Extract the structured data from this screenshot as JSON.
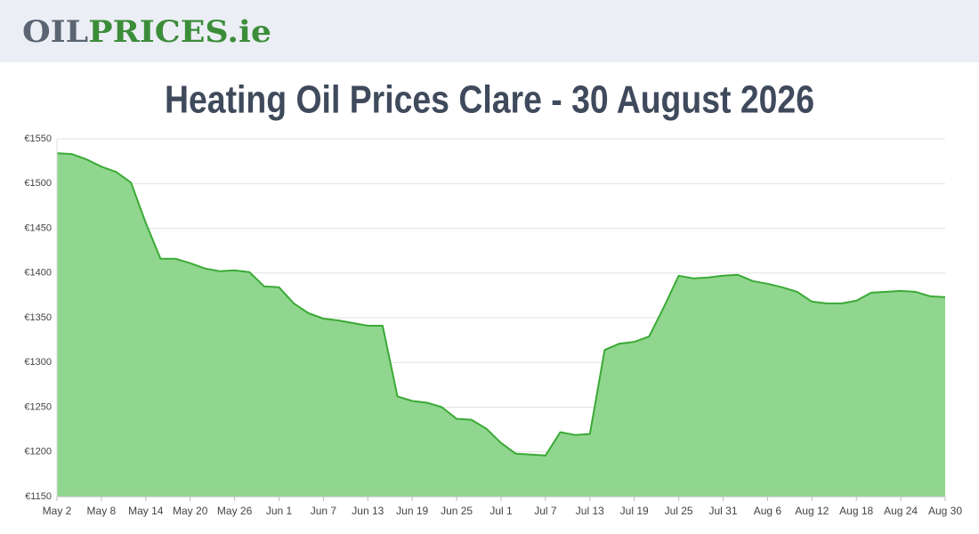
{
  "header": {
    "logo": [
      "OIL",
      "PRICES",
      ".ie"
    ]
  },
  "chart_data": {
    "type": "area",
    "title": "Heating Oil Prices Clare - 30 August 2026",
    "categories": [
      "May 2",
      null,
      null,
      "May 8",
      null,
      null,
      "May 14",
      null,
      null,
      "May 20",
      null,
      null,
      "May 26",
      null,
      null,
      "Jun 1",
      null,
      null,
      "Jun 7",
      null,
      null,
      "Jun 13",
      null,
      null,
      "Jun 19",
      null,
      null,
      "Jun 25",
      null,
      null,
      "Jul 1",
      null,
      null,
      "Jul 7",
      null,
      null,
      "Jul 13",
      null,
      null,
      "Jul 19",
      null,
      null,
      "Jul 25",
      null,
      null,
      "Jul 31",
      null,
      null,
      "Aug 6",
      null,
      null,
      "Aug 12",
      null,
      null,
      "Aug 18",
      null,
      null,
      "Aug 24",
      null,
      null,
      "Aug 30"
    ],
    "values": [
      1534,
      1533,
      1527,
      1519,
      1513,
      1501,
      1456,
      1416,
      1416,
      1411,
      1405,
      1402,
      1403,
      1401,
      1385,
      1384,
      1366,
      1355,
      1349,
      1347,
      1344,
      1341,
      1341,
      1262,
      1257,
      1255,
      1250,
      1237,
      1236,
      1226,
      1210,
      1198,
      1197,
      1196,
      1222,
      1219,
      1220,
      1314,
      1321,
      1323,
      1329,
      1362,
      1397,
      1394,
      1395,
      1397,
      1398,
      1391,
      1388,
      1384,
      1379,
      1368,
      1366,
      1366,
      1369,
      1378,
      1379,
      1380,
      1379,
      1374,
      1373
    ],
    "color": "#3aaa35",
    "fill": "#90d68f",
    "ylim": [
      1150,
      1550
    ],
    "yticks": [
      {
        "value": 1150,
        "label": "€1150"
      },
      {
        "value": 1200,
        "label": "€1200"
      },
      {
        "value": 1250,
        "label": "€1250"
      },
      {
        "value": 1300,
        "label": "€1300"
      },
      {
        "value": 1350,
        "label": "€1350"
      },
      {
        "value": 1400,
        "label": "€1400"
      },
      {
        "value": 1450,
        "label": "€1450"
      },
      {
        "value": 1500,
        "label": "€1500"
      },
      {
        "value": 1550,
        "label": "€1550"
      }
    ],
    "grid": true
  }
}
